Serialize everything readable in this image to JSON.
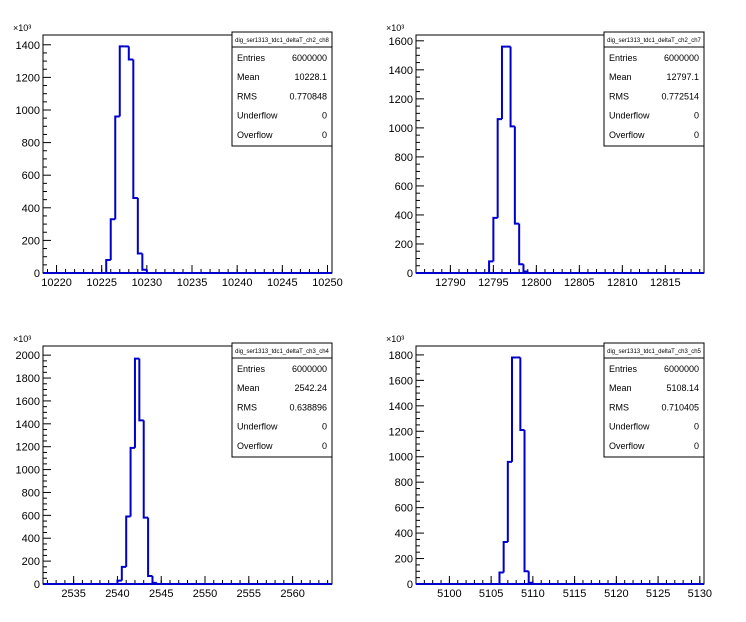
{
  "chart_data": [
    {
      "type": "histogram",
      "panel": "top-left",
      "stats_title": "dig_ser1313_tdc1_deltaT_ch2_ch8",
      "stats": [
        {
          "label": "Entries",
          "value": "6000000"
        },
        {
          "label": "Mean",
          "value": "10228.1"
        },
        {
          "label": "RMS",
          "value": "0.770848"
        },
        {
          "label": "Underflow",
          "value": "0"
        },
        {
          "label": "Overflow",
          "value": "0"
        }
      ],
      "y_exponent_label": "×10³",
      "xlim": [
        10218.5,
        10250.5
      ],
      "ylim": [
        0,
        1460
      ],
      "x_ticks": [
        10220,
        10225,
        10230,
        10235,
        10240,
        10245,
        10250
      ],
      "y_ticks": [
        0,
        200,
        400,
        600,
        800,
        1000,
        1200,
        1400
      ],
      "bins": {
        "edges_start": 10225.5,
        "width": 0.5,
        "values": [
          80,
          330,
          960,
          1390,
          1390,
          1310,
          460,
          120,
          20
        ]
      },
      "line_color": "#0000cc"
    },
    {
      "type": "histogram",
      "panel": "top-right",
      "stats_title": "dig_ser1313_tdc1_deltaT_ch2_ch7",
      "stats": [
        {
          "label": "Entries",
          "value": "6000000"
        },
        {
          "label": "Mean",
          "value": "12797.1"
        },
        {
          "label": "RMS",
          "value": "0.772514"
        },
        {
          "label": "Underflow",
          "value": "0"
        },
        {
          "label": "Overflow",
          "value": "0"
        }
      ],
      "y_exponent_label": "×10³",
      "xlim": [
        12786,
        12819.5
      ],
      "ylim": [
        0,
        1640
      ],
      "x_ticks": [
        12790,
        12795,
        12800,
        12805,
        12810,
        12815
      ],
      "y_ticks": [
        0,
        200,
        400,
        600,
        800,
        1000,
        1200,
        1400,
        1600
      ],
      "bins": {
        "edges_start": 12794.5,
        "width": 0.5,
        "values": [
          80,
          380,
          1060,
          1560,
          1560,
          1010,
          340,
          60,
          10
        ]
      },
      "line_color": "#0000cc"
    },
    {
      "type": "histogram",
      "panel": "bottom-left",
      "stats_title": "dig_ser1313_tdc1_deltaT_ch3_ch4",
      "stats": [
        {
          "label": "Entries",
          "value": "6000000"
        },
        {
          "label": "Mean",
          "value": "2542.24"
        },
        {
          "label": "RMS",
          "value": "0.638896"
        },
        {
          "label": "Underflow",
          "value": "0"
        },
        {
          "label": "Overflow",
          "value": "0"
        }
      ],
      "y_exponent_label": "×10³",
      "xlim": [
        2531.5,
        2564.5
      ],
      "ylim": [
        0,
        2080
      ],
      "x_ticks": [
        2535,
        2540,
        2545,
        2550,
        2555,
        2560
      ],
      "y_ticks": [
        0,
        200,
        400,
        600,
        800,
        1000,
        1200,
        1400,
        1600,
        1800,
        2000
      ],
      "bins": {
        "edges_start": 2540,
        "width": 0.5,
        "values": [
          30,
          150,
          590,
          1190,
          1970,
          1430,
          580,
          70,
          10
        ]
      },
      "line_color": "#0000cc"
    },
    {
      "type": "histogram",
      "panel": "bottom-right",
      "stats_title": "dig_ser1313_tdc1_deltaT_ch3_ch5",
      "stats": [
        {
          "label": "Entries",
          "value": "6000000"
        },
        {
          "label": "Mean",
          "value": "5108.14"
        },
        {
          "label": "RMS",
          "value": "0.710405"
        },
        {
          "label": "Underflow",
          "value": "0"
        },
        {
          "label": "Overflow",
          "value": "0"
        }
      ],
      "y_exponent_label": "×10³",
      "xlim": [
        5096,
        5130.5
      ],
      "ylim": [
        0,
        1870
      ],
      "x_ticks": [
        5100,
        5105,
        5110,
        5115,
        5120,
        5125,
        5130
      ],
      "y_ticks": [
        0,
        200,
        400,
        600,
        800,
        1000,
        1200,
        1400,
        1600,
        1800
      ],
      "bins": {
        "edges_start": 5106,
        "width": 0.5,
        "values": [
          90,
          330,
          960,
          1780,
          1780,
          1210,
          100,
          10
        ]
      },
      "line_color": "#0000cc"
    }
  ]
}
